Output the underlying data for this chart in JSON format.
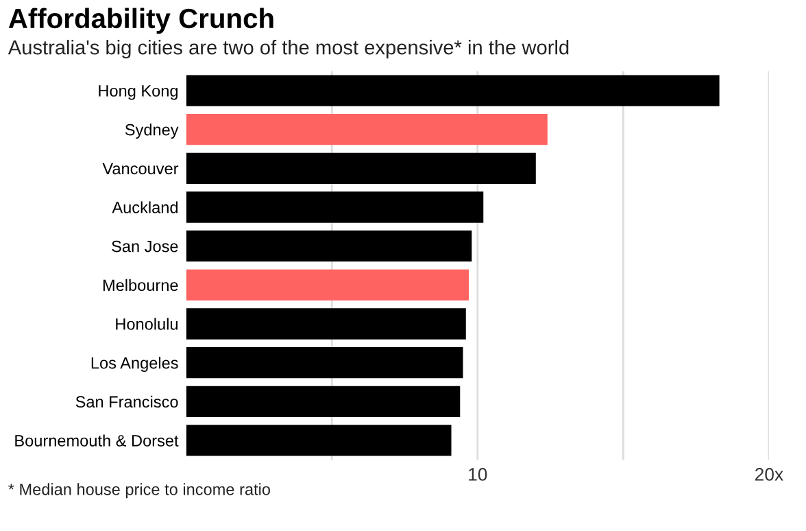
{
  "chart_data": {
    "type": "bar",
    "orientation": "horizontal",
    "title": "Affordability Crunch",
    "subtitle": "Australia's big cities are two of the most expensive* in the world",
    "categories": [
      "Hong Kong",
      "Sydney",
      "Vancouver",
      "Auckland",
      "San Jose",
      "Melbourne",
      "Honolulu",
      "Los Angeles",
      "San Francisco",
      "Bournemouth & Dorset"
    ],
    "values": [
      18.3,
      12.4,
      12.0,
      10.2,
      9.8,
      9.7,
      9.6,
      9.5,
      9.4,
      9.1
    ],
    "colors": [
      "#000000",
      "#ff6361",
      "#000000",
      "#000000",
      "#000000",
      "#ff6361",
      "#000000",
      "#000000",
      "#000000",
      "#000000"
    ],
    "xlim": [
      0,
      20
    ],
    "xticks": [
      {
        "value": 5,
        "label": null
      },
      10,
      {
        "value": 15,
        "label": null
      },
      {
        "value": 20,
        "label": "20x"
      }
    ],
    "grid": "x",
    "annotations": [
      "* Median house price to income ratio"
    ]
  }
}
